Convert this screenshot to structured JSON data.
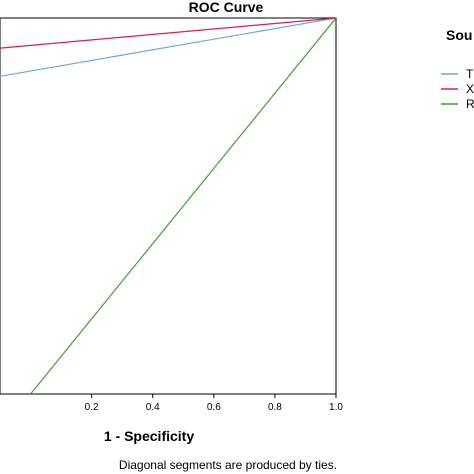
{
  "chart_data": {
    "type": "line",
    "title": "ROC Curve",
    "xlabel": "1 - Specificity",
    "ylabel": "",
    "xlim": [
      -0.1,
      1.0
    ],
    "ylim": [
      0.0,
      1.0
    ],
    "x_ticks": [
      "0.2",
      "0.4",
      "0.6",
      "0.8",
      "1.0"
    ],
    "x_tick_values": [
      0.2,
      0.4,
      0.6,
      0.8,
      1.0
    ],
    "grid": false,
    "legend": {
      "title": "Sou",
      "placement": "right",
      "entries": [
        "T",
        "X",
        "R"
      ]
    },
    "series": [
      {
        "name": "T",
        "color": "#6fa8dc",
        "x": [
          -0.1,
          1.0
        ],
        "y": [
          0.845,
          1.0
        ]
      },
      {
        "name": "X",
        "color": "#d0234e",
        "x": [
          -0.1,
          1.0
        ],
        "y": [
          0.92,
          1.0
        ]
      },
      {
        "name": "R",
        "color": "#3aa03a",
        "x": [
          -0.1,
          1.0
        ],
        "y": [
          -0.1,
          1.0
        ]
      }
    ],
    "footnote": "Diagonal segments are produced by ties."
  }
}
